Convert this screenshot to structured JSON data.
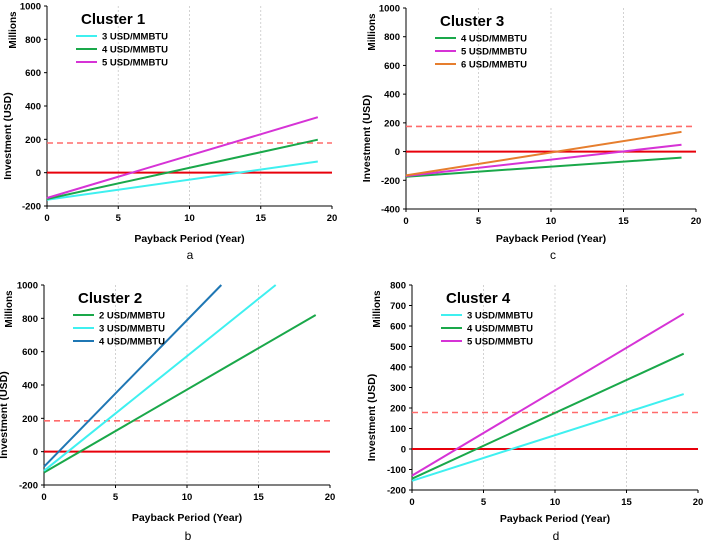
{
  "figure": {
    "reference_line_color": "#ff6b6b",
    "zero_line_color": "#e8000b",
    "grid_color": "#c8c8c8"
  },
  "chart_data": [
    {
      "type": "line",
      "panel_letter": "a",
      "title": "Cluster 1",
      "xlabel": "Payback Period (Year)",
      "ylabel": "Investment (USD)",
      "units_label": "Millions",
      "xlim": [
        0,
        20
      ],
      "ylim": [
        -200,
        1000
      ],
      "xticks": [
        0,
        5,
        10,
        15,
        20
      ],
      "yticks": [
        -200,
        0,
        200,
        400,
        600,
        800,
        1000
      ],
      "reference_y": 178,
      "legend_position": "top-left",
      "series": [
        {
          "name": "3 USD/MMBTU",
          "color": "#3ff0f0",
          "x": [
            0,
            19
          ],
          "y": [
            -163,
            67
          ]
        },
        {
          "name": "4 USD/MMBTU",
          "color": "#1aa84a",
          "x": [
            0,
            19
          ],
          "y": [
            -158,
            198
          ]
        },
        {
          "name": "5 USD/MMBTU",
          "color": "#d633d6",
          "x": [
            0,
            19
          ],
          "y": [
            -152,
            333
          ]
        }
      ]
    },
    {
      "type": "line",
      "panel_letter": "c",
      "title": "Cluster 3",
      "xlabel": "Payback Period (Year)",
      "ylabel": "Investment (USD)",
      "units_label": "Millions",
      "xlim": [
        0,
        20
      ],
      "ylim": [
        -400,
        1000
      ],
      "xticks": [
        0,
        5,
        10,
        15,
        20
      ],
      "yticks": [
        -400,
        -200,
        0,
        200,
        400,
        600,
        800,
        1000
      ],
      "reference_y": 175,
      "legend_position": "top-left",
      "series": [
        {
          "name": "4 USD/MMBTU",
          "color": "#1aa84a",
          "x": [
            0,
            19
          ],
          "y": [
            -175,
            -42
          ]
        },
        {
          "name": "5 USD/MMBTU",
          "color": "#d633d6",
          "x": [
            0,
            19
          ],
          "y": [
            -170,
            47
          ]
        },
        {
          "name": "6 USD/MMBTU",
          "color": "#e67e2e",
          "x": [
            0,
            19
          ],
          "y": [
            -166,
            137
          ]
        }
      ]
    },
    {
      "type": "line",
      "panel_letter": "b",
      "title": "Cluster 2",
      "xlabel": "Payback Period (Year)",
      "ylabel": "Investment (USD)",
      "units_label": "Millions",
      "xlim": [
        0,
        20
      ],
      "ylim": [
        -200,
        1000
      ],
      "xticks": [
        0,
        5,
        10,
        15,
        20
      ],
      "yticks": [
        -200,
        0,
        200,
        400,
        600,
        800,
        1000
      ],
      "reference_y": 185,
      "legend_position": "top-left",
      "series": [
        {
          "name": "2 USD/MMBTU",
          "color": "#1aa84a",
          "x": [
            0,
            19
          ],
          "y": [
            -125,
            820
          ]
        },
        {
          "name": "3 USD/MMBTU",
          "color": "#3ff0f0",
          "x": [
            0,
            16.2
          ],
          "y": [
            -115,
            1000
          ]
        },
        {
          "name": "4 USD/MMBTU",
          "color": "#1f77b4",
          "x": [
            0,
            12.4
          ],
          "y": [
            -90,
            1000
          ]
        }
      ]
    },
    {
      "type": "line",
      "panel_letter": "d",
      "title": "Cluster 4",
      "xlabel": "Payback Period (Year)",
      "ylabel": "Investment (USD)",
      "units_label": "Millions",
      "xlim": [
        0,
        20
      ],
      "ylim": [
        -200,
        800
      ],
      "xticks": [
        0,
        5,
        10,
        15,
        20
      ],
      "yticks": [
        -200,
        -100,
        0,
        100,
        200,
        300,
        400,
        500,
        600,
        700,
        800
      ],
      "reference_y": 178,
      "legend_position": "top-left",
      "series": [
        {
          "name": "3 USD/MMBTU",
          "color": "#3ff0f0",
          "x": [
            0,
            19
          ],
          "y": [
            -155,
            268
          ]
        },
        {
          "name": "4 USD/MMBTU",
          "color": "#1aa84a",
          "x": [
            0,
            19
          ],
          "y": [
            -145,
            465
          ]
        },
        {
          "name": "5 USD/MMBTU",
          "color": "#d633d6",
          "x": [
            0,
            19
          ],
          "y": [
            -130,
            660
          ]
        }
      ]
    }
  ]
}
